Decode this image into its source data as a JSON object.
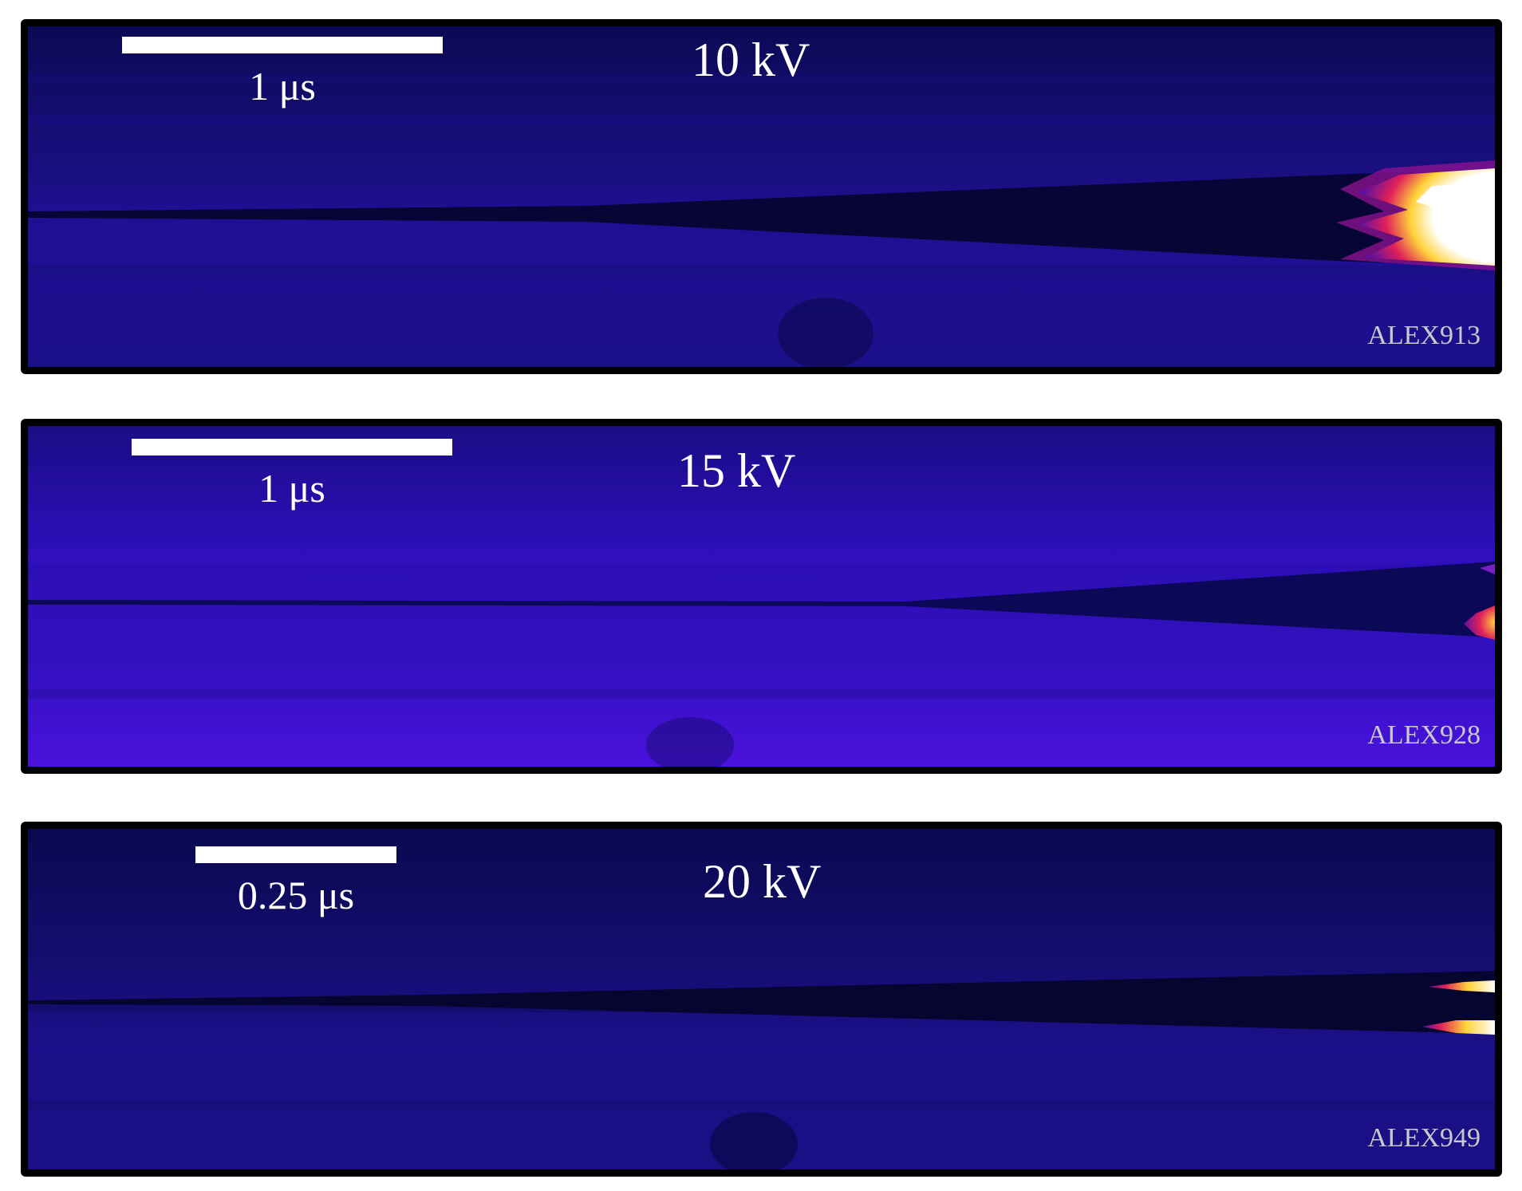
{
  "figure": {
    "panels": [
      {
        "voltage": "10 kV",
        "scale_label": "1 μs",
        "shot_id": "ALEX913"
      },
      {
        "voltage": "15 kV",
        "scale_label": "1 μs",
        "shot_id": "ALEX928"
      },
      {
        "voltage": "20 kV",
        "scale_label": "0.25 μs",
        "shot_id": "ALEX949"
      }
    ]
  },
  "colors": {
    "background_dark": "#0c0a5a",
    "background_violet": "#3a10c8",
    "shadow": "#060530",
    "hot_core": "#ffffff",
    "hot_mid": "#ffd23a",
    "hot_edge": "#e0205a",
    "frame": "#000000",
    "label_text": "#ffffff",
    "shot_text": "#c9c9c9"
  }
}
